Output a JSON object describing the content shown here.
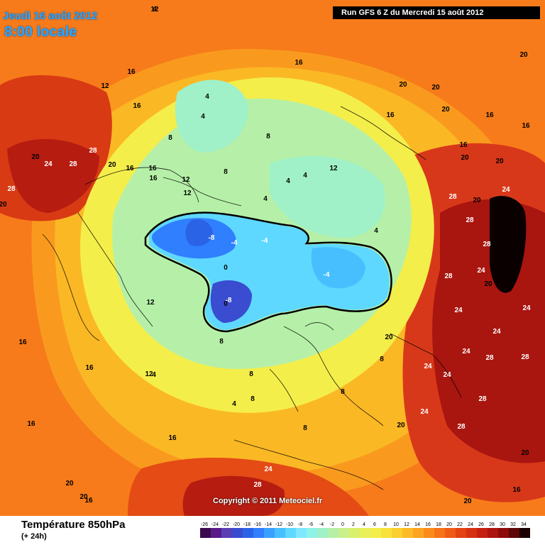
{
  "header": {
    "date_line": "Jeudi 16 août 2012",
    "time_line": "8:00 locale",
    "run_info": "Run GFS 6 Z du Mercredi 15 août 2012"
  },
  "map": {
    "copyright": "Copyright © 2011 Meteociel.fr",
    "temperature_labels": [
      "12",
      "16",
      "12",
      "16",
      "20",
      "24",
      "28",
      "28",
      "20",
      "28",
      "20",
      "16",
      "16",
      "16",
      "12",
      "12",
      "8",
      "4",
      "4",
      "8",
      "8",
      "4",
      "4",
      "4",
      "12",
      "16",
      "16",
      "20",
      "20",
      "20",
      "16",
      "16",
      "20",
      "20",
      "16",
      "20",
      "24",
      "28",
      "20",
      "28",
      "28",
      "24",
      "28",
      "20",
      "24",
      "24",
      "20",
      "24",
      "24",
      "28",
      "24",
      "28",
      "24",
      "24",
      "28",
      "28",
      "20",
      "20",
      "20",
      "16",
      "20",
      "24",
      "28",
      "20",
      "16",
      "16",
      "16",
      "16",
      "16",
      "12",
      "4",
      "0",
      "-4",
      "-8",
      "-4",
      "-8",
      "-4",
      "0",
      "4",
      "8",
      "8",
      "8",
      "8",
      "4",
      "8",
      "8",
      "12",
      "4"
    ]
  },
  "legend": {
    "title": "Température 850hPa",
    "subtitle": "(+ 24h)",
    "scale_values": [
      "-26",
      "-24",
      "-22",
      "-20",
      "-18",
      "-16",
      "-14",
      "-12",
      "-10",
      "-8",
      "-6",
      "-4",
      "-2",
      "0",
      "2",
      "4",
      "6",
      "8",
      "10",
      "12",
      "14",
      "16",
      "18",
      "20",
      "22",
      "24",
      "26",
      "28",
      "30",
      "32",
      "34"
    ],
    "scale_colors": [
      "#3b0a4f",
      "#5a1a8a",
      "#5b3fb5",
      "#3a4ccf",
      "#2b63e6",
      "#2f7fff",
      "#3aa0ff",
      "#47bfff",
      "#5ed8ff",
      "#7fe8ff",
      "#8ef2e8",
      "#a0f0c8",
      "#b6f0a8",
      "#c9f08c",
      "#d9f06c",
      "#e9f15a",
      "#f4ee4a",
      "#f8e13a",
      "#fbd02e",
      "#fcbb26",
      "#fca421",
      "#fb8c1c",
      "#f77318",
      "#ef5b16",
      "#e44314",
      "#d73012",
      "#c52010",
      "#ad150e",
      "#8e0c0b",
      "#5e0706",
      "#1a0000"
    ]
  }
}
